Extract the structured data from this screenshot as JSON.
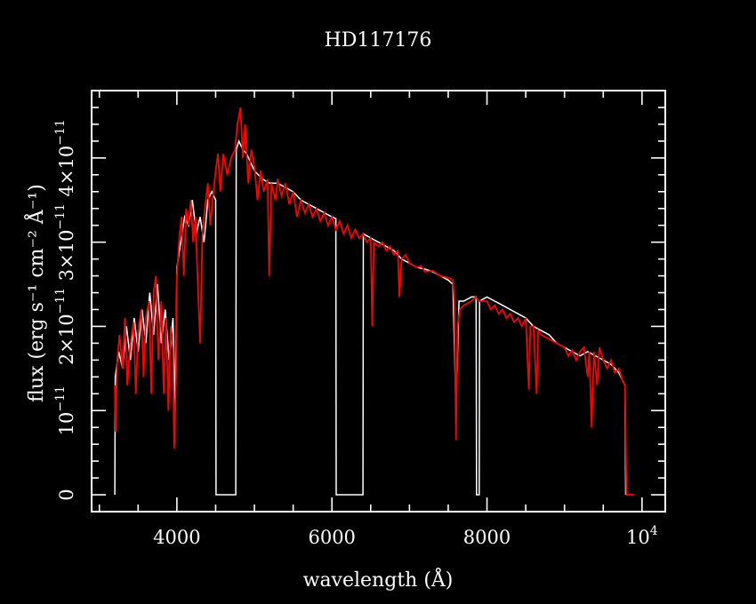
{
  "chart_data": {
    "type": "line",
    "title": "HD117176",
    "xlabel": "wavelength (Å)",
    "ylabel": "flux (erg s⁻¹ cm⁻² Å⁻¹)",
    "xlim": [
      2900,
      10300
    ],
    "ylim": [
      -2e-12,
      4.8e-11
    ],
    "x_scale": "linear",
    "x_ticks": [
      {
        "value": 4000,
        "label": "4000"
      },
      {
        "value": 6000,
        "label": "6000"
      },
      {
        "value": 8000,
        "label": "8000"
      },
      {
        "value": 10000,
        "label": "10",
        "exp": "4"
      }
    ],
    "y_ticks": [
      {
        "value": 0,
        "label": "0"
      },
      {
        "value": 1e-11,
        "label": "10",
        "exp": "−11"
      },
      {
        "value": 2e-11,
        "label": "2×10",
        "exp": "−11"
      },
      {
        "value": 3e-11,
        "label": "3×10",
        "exp": "−11"
      },
      {
        "value": 4e-11,
        "label": "4×10",
        "exp": "−11"
      }
    ],
    "grid": false,
    "colors": {
      "background": "#000000",
      "axes": "#ffffff",
      "observed": "#ffffff",
      "model": "#ff0000"
    },
    "series": [
      {
        "color": "#ffffff",
        "points": [
          [
            3200,
            0
          ],
          [
            3205,
            1.4e-11
          ],
          [
            3250,
            1.7e-11
          ],
          [
            3300,
            1.5e-11
          ],
          [
            3350,
            2e-11
          ],
          [
            3400,
            1.6e-11
          ],
          [
            3450,
            2.1e-11
          ],
          [
            3500,
            1.7e-11
          ],
          [
            3550,
            2.2e-11
          ],
          [
            3600,
            1.8e-11
          ],
          [
            3650,
            2.4e-11
          ],
          [
            3700,
            1.9e-11
          ],
          [
            3750,
            2.5e-11
          ],
          [
            3800,
            1.8e-11
          ],
          [
            3850,
            2.2e-11
          ],
          [
            3900,
            1.6e-11
          ],
          [
            3950,
            2.1e-11
          ],
          [
            3980,
            1e-11
          ],
          [
            4000,
            2.7e-11
          ],
          [
            4050,
            3e-11
          ],
          [
            4100,
            3.3e-11
          ],
          [
            4150,
            3.2e-11
          ],
          [
            4200,
            3.5e-11
          ],
          [
            4250,
            3.1e-11
          ],
          [
            4300,
            3.3e-11
          ],
          [
            4350,
            3e-11
          ],
          [
            4400,
            3.5e-11
          ],
          [
            4450,
            3.6e-11
          ],
          [
            4500,
            3.5e-11
          ],
          [
            4505,
            0
          ],
          [
            4760,
            0
          ],
          [
            4765,
            4.1e-11
          ],
          [
            4800,
            4.2e-11
          ],
          [
            4850,
            4.1e-11
          ],
          [
            4900,
            4.05e-11
          ],
          [
            5000,
            3.85e-11
          ],
          [
            5100,
            3.75e-11
          ],
          [
            5200,
            3.7e-11
          ],
          [
            5300,
            3.7e-11
          ],
          [
            5400,
            3.65e-11
          ],
          [
            5500,
            3.6e-11
          ],
          [
            5600,
            3.5e-11
          ],
          [
            5700,
            3.45e-11
          ],
          [
            5800,
            3.4e-11
          ],
          [
            5900,
            3.35e-11
          ],
          [
            6000,
            3.3e-11
          ],
          [
            6050,
            3.28e-11
          ],
          [
            6055,
            0
          ],
          [
            6400,
            0
          ],
          [
            6405,
            3.1e-11
          ],
          [
            6500,
            3.05e-11
          ],
          [
            6600,
            3e-11
          ],
          [
            6700,
            2.95e-11
          ],
          [
            6800,
            2.9e-11
          ],
          [
            6900,
            2.8e-11
          ],
          [
            7000,
            2.75e-11
          ],
          [
            7100,
            2.7e-11
          ],
          [
            7200,
            2.68e-11
          ],
          [
            7300,
            2.65e-11
          ],
          [
            7400,
            2.6e-11
          ],
          [
            7500,
            2.55e-11
          ],
          [
            7560,
            2.5e-11
          ],
          [
            7600,
            1e-11
          ],
          [
            7640,
            2.3e-11
          ],
          [
            7700,
            2.3e-11
          ],
          [
            7800,
            2.35e-11
          ],
          [
            7860,
            2.35e-11
          ],
          [
            7865,
            0
          ],
          [
            7900,
            0
          ],
          [
            7905,
            2.3e-11
          ],
          [
            8000,
            2.35e-11
          ],
          [
            8100,
            2.3e-11
          ],
          [
            8200,
            2.25e-11
          ],
          [
            8300,
            2.2e-11
          ],
          [
            8400,
            2.15e-11
          ],
          [
            8500,
            2.1e-11
          ],
          [
            8600,
            2e-11
          ],
          [
            8700,
            1.95e-11
          ],
          [
            8800,
            1.9e-11
          ],
          [
            8900,
            1.8e-11
          ],
          [
            9000,
            1.75e-11
          ],
          [
            9100,
            1.7e-11
          ],
          [
            9200,
            1.65e-11
          ],
          [
            9300,
            1.7e-11
          ],
          [
            9400,
            1.65e-11
          ],
          [
            9500,
            1.6e-11
          ],
          [
            9600,
            1.55e-11
          ],
          [
            9700,
            1.45e-11
          ],
          [
            9780,
            1.3e-11
          ],
          [
            9790,
            0
          ]
        ]
      },
      {
        "color": "#ff0000",
        "points": [
          [
            3200,
            1.3e-11
          ],
          [
            3210,
            7.5e-12
          ],
          [
            3230,
            1.6e-11
          ],
          [
            3260,
            1.9e-11
          ],
          [
            3300,
            1.5e-11
          ],
          [
            3330,
            2.1e-11
          ],
          [
            3360,
            1.3e-11
          ],
          [
            3400,
            1.8e-11
          ],
          [
            3440,
            2.05e-11
          ],
          [
            3470,
            1.2e-11
          ],
          [
            3500,
            1.95e-11
          ],
          [
            3540,
            2.2e-11
          ],
          [
            3570,
            1.4e-11
          ],
          [
            3600,
            2.1e-11
          ],
          [
            3640,
            2.3e-11
          ],
          [
            3670,
            1.2e-11
          ],
          [
            3700,
            2.4e-11
          ],
          [
            3730,
            2.6e-11
          ],
          [
            3760,
            1.6e-11
          ],
          [
            3800,
            2.3e-11
          ],
          [
            3830,
            1.2e-11
          ],
          [
            3860,
            2.1e-11
          ],
          [
            3890,
            1e-11
          ],
          [
            3920,
            2e-11
          ],
          [
            3950,
            1.7e-11
          ],
          [
            3965,
            5.5e-12
          ],
          [
            3990,
            1.4e-11
          ],
          [
            4000,
            2.6e-11
          ],
          [
            4030,
            3.05e-11
          ],
          [
            4060,
            3.3e-11
          ],
          [
            4090,
            2.6e-11
          ],
          [
            4120,
            3.4e-11
          ],
          [
            4150,
            3.2e-11
          ],
          [
            4180,
            3.5e-11
          ],
          [
            4210,
            3e-11
          ],
          [
            4240,
            3.3e-11
          ],
          [
            4270,
            2.5e-11
          ],
          [
            4300,
            1.8e-11
          ],
          [
            4330,
            3.1e-11
          ],
          [
            4360,
            3.4e-11
          ],
          [
            4400,
            3.7e-11
          ],
          [
            4430,
            3.2e-11
          ],
          [
            4460,
            3.5e-11
          ],
          [
            4500,
            3.85e-11
          ],
          [
            4530,
            4.05e-11
          ],
          [
            4560,
            3.6e-11
          ],
          [
            4600,
            4.05e-11
          ],
          [
            4650,
            3.8e-11
          ],
          [
            4700,
            4e-11
          ],
          [
            4750,
            4.1e-11
          ],
          [
            4780,
            4.4e-11
          ],
          [
            4820,
            4.6e-11
          ],
          [
            4850,
            4e-11
          ],
          [
            4880,
            4.4e-11
          ],
          [
            4920,
            3.7e-11
          ],
          [
            4960,
            4.1e-11
          ],
          [
            5000,
            3.9e-11
          ],
          [
            5040,
            3.5e-11
          ],
          [
            5080,
            3.85e-11
          ],
          [
            5120,
            3.6e-11
          ],
          [
            5170,
            3.75e-11
          ],
          [
            5190,
            2.6e-11
          ],
          [
            5220,
            3.7e-11
          ],
          [
            5270,
            3.5e-11
          ],
          [
            5300,
            3.75e-11
          ],
          [
            5350,
            3.55e-11
          ],
          [
            5400,
            3.7e-11
          ],
          [
            5450,
            3.45e-11
          ],
          [
            5500,
            3.6e-11
          ],
          [
            5550,
            3.3e-11
          ],
          [
            5600,
            3.5e-11
          ],
          [
            5650,
            3.35e-11
          ],
          [
            5700,
            3.45e-11
          ],
          [
            5750,
            3.3e-11
          ],
          [
            5800,
            3.4e-11
          ],
          [
            5850,
            3.25e-11
          ],
          [
            5900,
            3.35e-11
          ],
          [
            5950,
            3.2e-11
          ],
          [
            6000,
            3.3e-11
          ],
          [
            6050,
            3.15e-11
          ],
          [
            6100,
            3.25e-11
          ],
          [
            6150,
            3.1e-11
          ],
          [
            6200,
            3.2e-11
          ],
          [
            6250,
            3.05e-11
          ],
          [
            6300,
            3.15e-11
          ],
          [
            6350,
            3.05e-11
          ],
          [
            6400,
            3.1e-11
          ],
          [
            6450,
            3e-11
          ],
          [
            6500,
            3.05e-11
          ],
          [
            6520,
            2e-11
          ],
          [
            6540,
            3e-11
          ],
          [
            6600,
            2.95e-11
          ],
          [
            6650,
            3e-11
          ],
          [
            6700,
            2.9e-11
          ],
          [
            6750,
            2.95e-11
          ],
          [
            6800,
            2.85e-11
          ],
          [
            6850,
            2.9e-11
          ],
          [
            6870,
            2.35e-11
          ],
          [
            6900,
            2.8e-11
          ],
          [
            6950,
            2.85e-11
          ],
          [
            7000,
            2.75e-11
          ],
          [
            7100,
            2.7e-11
          ],
          [
            7150,
            2.72e-11
          ],
          [
            7200,
            2.65e-11
          ],
          [
            7300,
            2.66e-11
          ],
          [
            7400,
            2.6e-11
          ],
          [
            7500,
            2.58e-11
          ],
          [
            7560,
            2.55e-11
          ],
          [
            7580,
            2.3e-11
          ],
          [
            7600,
            6.5e-12
          ],
          [
            7620,
            2e-11
          ],
          [
            7650,
            2.2e-11
          ],
          [
            7700,
            2.25e-11
          ],
          [
            7800,
            2.3e-11
          ],
          [
            7850,
            2.35e-11
          ],
          [
            7900,
            2.3e-11
          ],
          [
            7950,
            2.3e-11
          ],
          [
            8000,
            2.3e-11
          ],
          [
            8050,
            2.2e-11
          ],
          [
            8100,
            2.25e-11
          ],
          [
            8150,
            2.15e-11
          ],
          [
            8200,
            2.2e-11
          ],
          [
            8250,
            2.1e-11
          ],
          [
            8300,
            2.15e-11
          ],
          [
            8350,
            2.05e-11
          ],
          [
            8400,
            2.1e-11
          ],
          [
            8450,
            2e-11
          ],
          [
            8500,
            2.1e-11
          ],
          [
            8540,
            1.25e-11
          ],
          [
            8560,
            2e-11
          ],
          [
            8600,
            2e-11
          ],
          [
            8640,
            1.2e-11
          ],
          [
            8660,
            1.95e-11
          ],
          [
            8700,
            1.9e-11
          ],
          [
            8800,
            1.85e-11
          ],
          [
            8900,
            1.8e-11
          ],
          [
            9000,
            1.75e-11
          ],
          [
            9050,
            1.65e-11
          ],
          [
            9100,
            1.72e-11
          ],
          [
            9150,
            1.6e-11
          ],
          [
            9200,
            1.7e-11
          ],
          [
            9250,
            1.75e-11
          ],
          [
            9300,
            1.4e-11
          ],
          [
            9320,
            1.7e-11
          ],
          [
            9350,
            8e-12
          ],
          [
            9380,
            1.7e-11
          ],
          [
            9420,
            1.3e-11
          ],
          [
            9450,
            1.75e-11
          ],
          [
            9500,
            1.6e-11
          ],
          [
            9550,
            1.5e-11
          ],
          [
            9600,
            1.6e-11
          ],
          [
            9650,
            1.45e-11
          ],
          [
            9700,
            1.5e-11
          ],
          [
            9750,
            1.35e-11
          ],
          [
            9780,
            1.3e-11
          ],
          [
            9800,
            0
          ],
          [
            9900,
            0
          ]
        ]
      }
    ]
  }
}
